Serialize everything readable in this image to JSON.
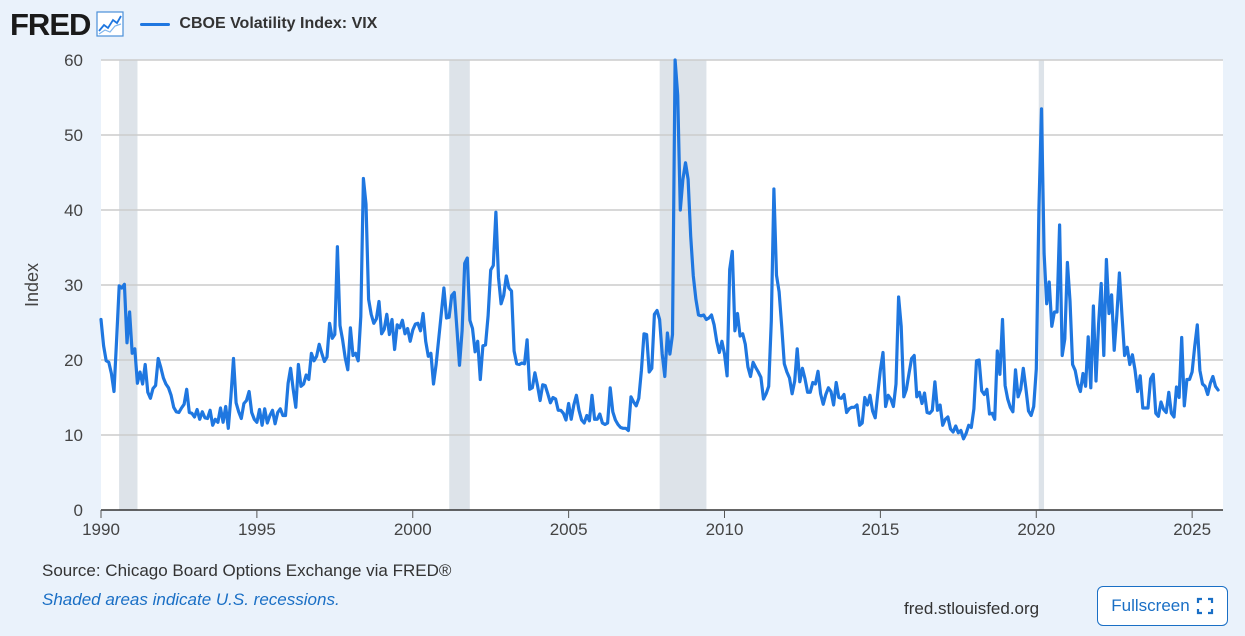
{
  "header": {
    "logo_text": "FRED",
    "logo_icon": "line-graph-icon",
    "legend_label": "CBOE Volatility Index: VIX"
  },
  "footer": {
    "source": "Source: Chicago Board Options Exchange via FRED®",
    "note": "Shaded areas indicate U.S. recessions.",
    "url": "fred.stlouisfed.org",
    "fullscreen_label": "Fullscreen",
    "fullscreen_icon": "expand-icon"
  },
  "colors": {
    "series": "#1f77e0",
    "recession": "#dde3e9",
    "plot_bg": "#ffffff",
    "page_bg": "#eaf2fb",
    "grid": "#cccccc",
    "accent": "#1a6fc5"
  },
  "chart_data": {
    "type": "line",
    "title": "",
    "xlabel": "",
    "ylabel": "Index",
    "xlim": [
      1990.0,
      2025.99
    ],
    "ylim": [
      0,
      60
    ],
    "yticks": [
      0,
      10,
      20,
      30,
      40,
      50,
      60
    ],
    "xticks": [
      1990,
      1995,
      2000,
      2005,
      2010,
      2015,
      2020,
      2025
    ],
    "grid": true,
    "recessions": [
      {
        "start": 1990.58,
        "end": 1991.17
      },
      {
        "start": 2001.17,
        "end": 2001.83
      },
      {
        "start": 2007.92,
        "end": 2009.42
      },
      {
        "start": 2020.08,
        "end": 2020.25
      }
    ],
    "series": [
      {
        "name": "CBOE Volatility Index: VIX",
        "frequency": "monthly",
        "start": 1990.0,
        "values": [
          25.4,
          21.9,
          19.9,
          19.7,
          18.2,
          15.8,
          22.7,
          29.9,
          29.6,
          30.1,
          22.3,
          26.4,
          20.9,
          21.5,
          16.9,
          18.4,
          16.8,
          19.4,
          15.7,
          14.9,
          16.2,
          16.6,
          20.2,
          19.0,
          17.6,
          16.8,
          16.3,
          15.3,
          13.7,
          13.1,
          13.0,
          13.6,
          14.1,
          16.1,
          13.0,
          12.9,
          12.4,
          13.4,
          12.1,
          13.1,
          12.3,
          12.2,
          13.3,
          11.3,
          12.1,
          11.7,
          13.6,
          11.7,
          13.8,
          10.9,
          15.1,
          20.2,
          14.3,
          13.1,
          12.2,
          14.2,
          14.6,
          15.8,
          13.0,
          12.1,
          11.7,
          13.4,
          11.3,
          13.5,
          11.6,
          12.6,
          13.3,
          11.5,
          13.0,
          13.5,
          12.6,
          12.6,
          16.9,
          18.9,
          16.1,
          13.7,
          19.4,
          16.5,
          16.8,
          18.0,
          17.4,
          20.9,
          19.9,
          20.5,
          22.1,
          20.9,
          19.8,
          20.4,
          24.9,
          22.9,
          23.4,
          35.1,
          24.6,
          22.7,
          20.3,
          18.7,
          24.3,
          20.6,
          20.9,
          19.9,
          25.8,
          44.2,
          40.8,
          28.1,
          26.1,
          24.9,
          25.5,
          27.8,
          23.5,
          24.1,
          26.1,
          23.4,
          25.4,
          21.4,
          24.7,
          24.3,
          25.3,
          23.5,
          24.2,
          22.5,
          24.0,
          24.8,
          24.9,
          23.9,
          26.2,
          22.5,
          20.5,
          20.9,
          16.8,
          19.4,
          22.8,
          26.2,
          29.6,
          25.6,
          25.7,
          28.6,
          29.0,
          24.2,
          19.3,
          23.9,
          32.9,
          33.6,
          25.3,
          24.2,
          21.1,
          22.5,
          17.4,
          21.9,
          22.0,
          25.9,
          32.0,
          32.6,
          39.7,
          31.0,
          27.5,
          28.6,
          31.2,
          29.6,
          29.2,
          21.2,
          19.5,
          19.4,
          19.6,
          19.5,
          22.7,
          16.1,
          16.3,
          18.3,
          16.6,
          14.6,
          16.7,
          16.6,
          15.5,
          14.3,
          15.0,
          14.8,
          13.3,
          13.3,
          12.9,
          12.0,
          14.2,
          12.1,
          14.0,
          15.3,
          13.3,
          12.0,
          11.6,
          12.6,
          11.9,
          15.3,
          12.1,
          12.1,
          12.8,
          11.6,
          11.4,
          11.6,
          16.3,
          13.1,
          12.0,
          11.4,
          11.0,
          10.9,
          10.9,
          10.6,
          15.1,
          14.4,
          13.9,
          14.9,
          18.6,
          23.5,
          23.4,
          18.4,
          18.9,
          26.1,
          26.6,
          25.4,
          20.8,
          17.8,
          23.6,
          20.8,
          23.4,
          60.0,
          55.3,
          40.0,
          44.1,
          46.3,
          44.1,
          36.5,
          31.2,
          28.1,
          26.0,
          25.9,
          26.0,
          25.4,
          25.6,
          26.0,
          24.7,
          22.5,
          21.0,
          22.5,
          20.8,
          17.9,
          32.1,
          34.5,
          23.9,
          26.2,
          23.2,
          23.5,
          22.1,
          19.1,
          17.8,
          19.7,
          19.0,
          18.4,
          17.7,
          14.8,
          15.5,
          16.5,
          25.2,
          42.8,
          31.3,
          29.1,
          24.5,
          19.5,
          18.4,
          17.6,
          15.5,
          17.2,
          21.5,
          17.1,
          18.9,
          17.5,
          15.7,
          15.7,
          17.0,
          16.8,
          18.5,
          15.5,
          14.1,
          15.4,
          16.3,
          15.8,
          14.0,
          17.0,
          15.0,
          14.9,
          15.4,
          13.0,
          13.5,
          13.7,
          13.7,
          14.0,
          11.3,
          11.6,
          15.0,
          14.0,
          15.3,
          13.2,
          12.3,
          15.6,
          18.7,
          21.0,
          13.8,
          15.3,
          14.8,
          13.8,
          16.8,
          28.4,
          24.5,
          15.1,
          16.1,
          18.2,
          20.2,
          20.6,
          15.1,
          15.7,
          14.2,
          15.6,
          13.0,
          12.9,
          13.3,
          17.1,
          13.3,
          14.0,
          11.3,
          12.1,
          12.4,
          10.8,
          10.4,
          11.2,
          10.3,
          10.6,
          9.5,
          10.2,
          11.3,
          11.0,
          13.5,
          19.9,
          20.0,
          15.9,
          15.4,
          16.1,
          12.8,
          12.9,
          12.1,
          21.2,
          18.1,
          25.4,
          16.6,
          14.8,
          13.7,
          13.1,
          18.7,
          15.1,
          16.1,
          18.9,
          16.2,
          13.2,
          12.6,
          13.8,
          18.8,
          40.1,
          53.5,
          34.2,
          27.5,
          30.4,
          24.5,
          26.4,
          26.4,
          38.0,
          20.6,
          22.8,
          33.0,
          27.9,
          19.4,
          18.6,
          16.8,
          15.8,
          18.2,
          16.5,
          23.1,
          16.3,
          27.2,
          17.2,
          24.8,
          30.2,
          20.6,
          33.4,
          26.2,
          28.7,
          21.3,
          25.9,
          31.6,
          25.9,
          20.6,
          21.7,
          19.4,
          20.7,
          18.7,
          15.8,
          17.9,
          13.6,
          13.6,
          13.6,
          17.5,
          18.1,
          12.9,
          12.5,
          14.4,
          13.4,
          13.0,
          15.7,
          12.9,
          12.4,
          16.4,
          15.0,
          23.0,
          13.9,
          17.4,
          17.4,
          18.4,
          21.8,
          24.7,
          18.6,
          16.8,
          16.5,
          15.4,
          16.9,
          17.8,
          16.5,
          16.0
        ]
      }
    ]
  }
}
